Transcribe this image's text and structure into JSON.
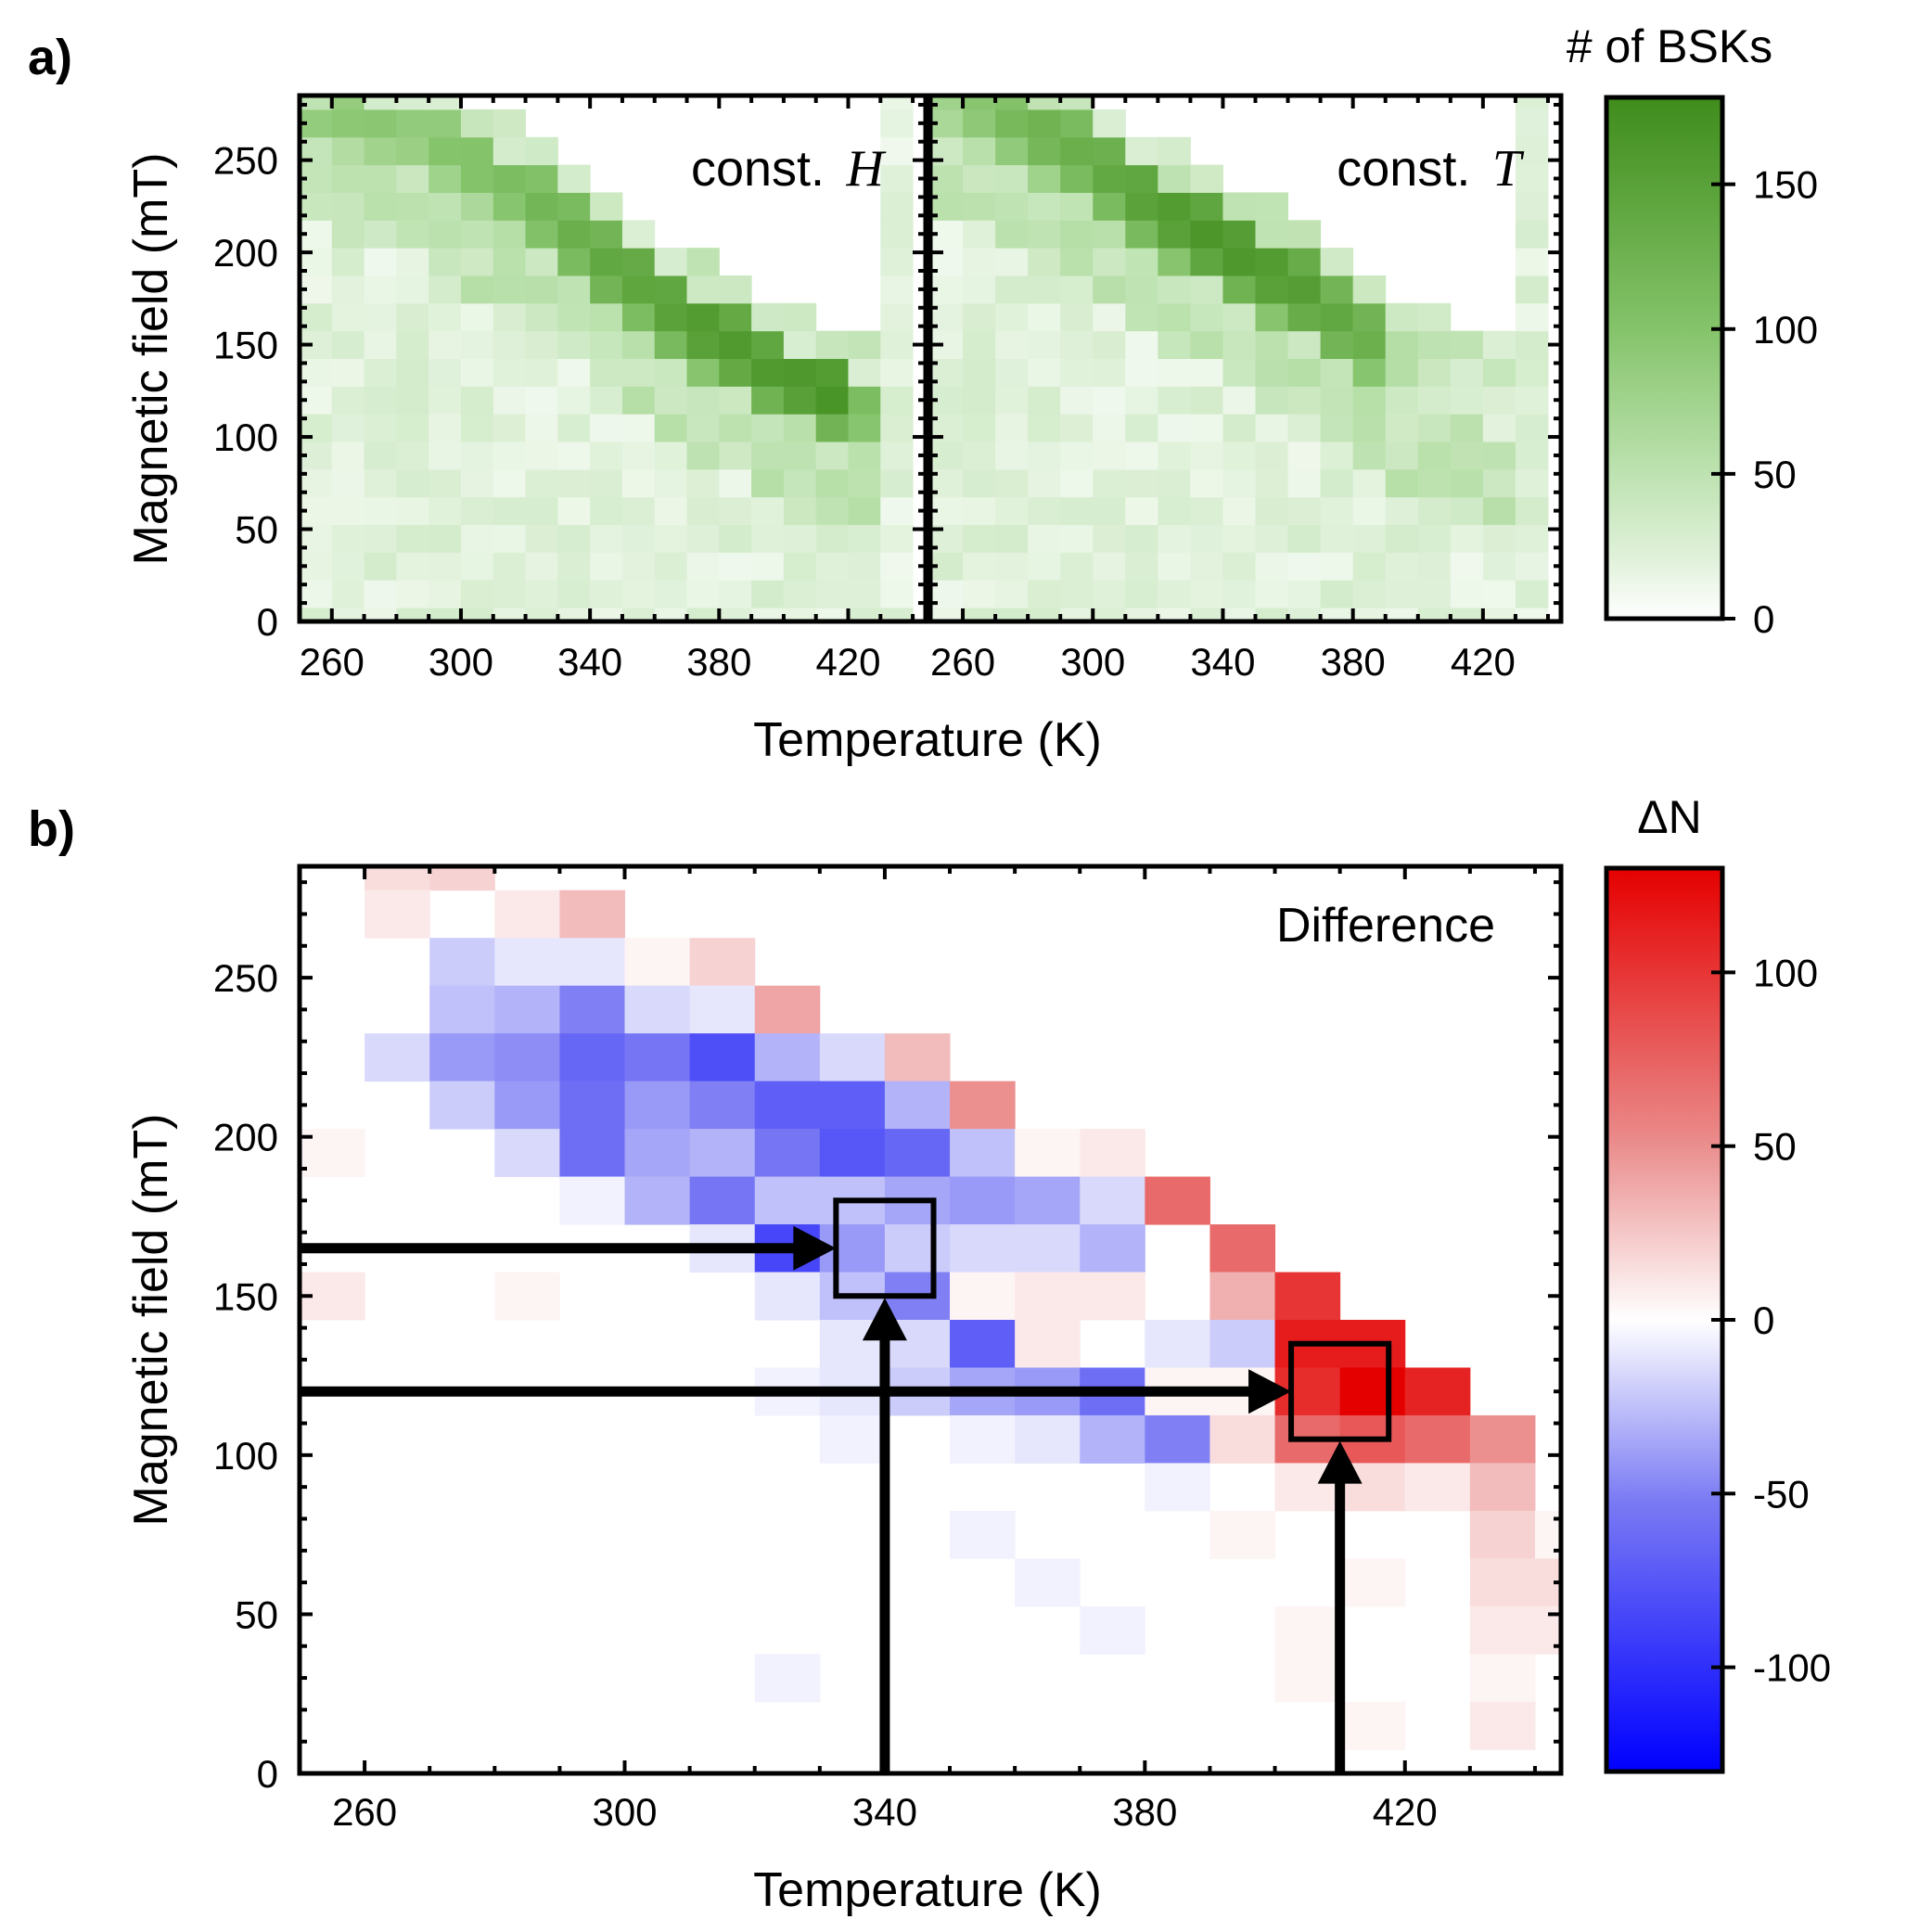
{
  "panel_labels": {
    "a": "a)",
    "b": "b)"
  },
  "panel_a": {
    "colorbar_title": "# of BSKs",
    "colorbar_ticks": [
      "0",
      "50",
      "100",
      "150"
    ],
    "colorbar_tick_values": [
      0,
      50,
      100,
      150
    ],
    "colorbar_range": [
      0,
      180
    ],
    "colorbar_colors": [
      "#ffffff",
      "#e4f3df",
      "#b9e0ab",
      "#86c46c",
      "#5ea53e",
      "#3f8c1c"
    ],
    "ylabel": "Magnetic field (mT)",
    "xlabel": "Temperature (K)",
    "yticks": [
      "0",
      "50",
      "100",
      "150",
      "200",
      "250"
    ],
    "left_xticks": [
      "260",
      "300",
      "340",
      "380",
      "420"
    ],
    "right_xticks": [
      "260",
      "300",
      "340",
      "380",
      "420"
    ]
  },
  "panel_b": {
    "colorbar_title": "ΔN",
    "colorbar_ticks": [
      "-100",
      "-50",
      "0",
      "50",
      "100"
    ],
    "colorbar_tick_values": [
      -100,
      -50,
      0,
      50,
      100
    ],
    "colorbar_range": [
      -130,
      130
    ],
    "colorbar_colors": [
      "#0000ff",
      "#7b7bf4",
      "#ffffff",
      "#ea8a8a",
      "#e50000"
    ],
    "ylabel": "Magnetic field (mT)",
    "xlabel": "Temperature (K)",
    "yticks": [
      "0",
      "50",
      "100",
      "150",
      "200",
      "250"
    ],
    "xticks": [
      "260",
      "300",
      "340",
      "380",
      "420"
    ],
    "annotation": "Difference"
  },
  "chart_data": [
    {
      "type": "heatmap",
      "title": "const. H",
      "title_text": "const.",
      "title_var": "H",
      "xlabel": "Temperature (K)",
      "ylabel": "Magnetic field (mT)",
      "xlim": [
        250,
        444
      ],
      "ylim": [
        0,
        285
      ],
      "color_range": [
        0,
        180
      ],
      "colorbar_label": "# of BSKs",
      "cell_size": {
        "T": 10,
        "H": 15
      },
      "bands": [
        {
          "t": 255,
          "hb": 270,
          "w": 10,
          "v": 90
        },
        {
          "t": 265,
          "hb": 265,
          "w": 20,
          "v": 95
        },
        {
          "t": 275,
          "hb": 260,
          "w": 20,
          "v": 95
        },
        {
          "t": 285,
          "hb": 255,
          "w": 20,
          "v": 90
        },
        {
          "t": 295,
          "hb": 245,
          "w": 25,
          "v": 100
        },
        {
          "t": 305,
          "hb": 235,
          "w": 25,
          "v": 105
        },
        {
          "t": 315,
          "hb": 225,
          "w": 25,
          "v": 110
        },
        {
          "t": 325,
          "hb": 210,
          "w": 30,
          "v": 120
        },
        {
          "t": 335,
          "hb": 195,
          "w": 30,
          "v": 130
        },
        {
          "t": 345,
          "hb": 180,
          "w": 30,
          "v": 140
        },
        {
          "t": 355,
          "hb": 170,
          "w": 30,
          "v": 145
        },
        {
          "t": 365,
          "hb": 155,
          "w": 30,
          "v": 150
        },
        {
          "t": 375,
          "hb": 145,
          "w": 30,
          "v": 160
        },
        {
          "t": 385,
          "hb": 135,
          "w": 30,
          "v": 160
        },
        {
          "t": 395,
          "hb": 125,
          "w": 25,
          "v": 160
        },
        {
          "t": 405,
          "hb": 118,
          "w": 25,
          "v": 165
        },
        {
          "t": 415,
          "hb": 112,
          "w": 25,
          "v": 170
        },
        {
          "t": 425,
          "hb": 105,
          "w": 25,
          "v": 110
        },
        {
          "t": 435,
          "hb": 0,
          "w": 0,
          "v": 0
        }
      ]
    },
    {
      "type": "heatmap",
      "title": "const. T",
      "title_text": "const.",
      "title_var": "T",
      "xlabel": "Temperature (K)",
      "ylabel": "Magnetic field (mT)",
      "xlim": [
        250,
        444
      ],
      "ylim": [
        0,
        285
      ],
      "color_range": [
        0,
        180
      ],
      "colorbar_label": "# of BSKs",
      "cell_size": {
        "T": 10,
        "H": 15
      },
      "bands": [
        {
          "t": 255,
          "hb": 275,
          "w": 10,
          "v": 80
        },
        {
          "t": 265,
          "hb": 270,
          "w": 20,
          "v": 100
        },
        {
          "t": 275,
          "hb": 260,
          "w": 25,
          "v": 115
        },
        {
          "t": 285,
          "hb": 250,
          "w": 30,
          "v": 125
        },
        {
          "t": 295,
          "hb": 240,
          "w": 30,
          "v": 130
        },
        {
          "t": 305,
          "hb": 228,
          "w": 30,
          "v": 140
        },
        {
          "t": 315,
          "hb": 215,
          "w": 30,
          "v": 150
        },
        {
          "t": 325,
          "hb": 205,
          "w": 30,
          "v": 160
        },
        {
          "t": 335,
          "hb": 195,
          "w": 30,
          "v": 165
        },
        {
          "t": 345,
          "hb": 185,
          "w": 30,
          "v": 165
        },
        {
          "t": 355,
          "hb": 175,
          "w": 30,
          "v": 160
        },
        {
          "t": 365,
          "hb": 165,
          "w": 30,
          "v": 155
        },
        {
          "t": 375,
          "hb": 150,
          "w": 30,
          "v": 140
        },
        {
          "t": 385,
          "hb": 140,
          "w": 30,
          "v": 130
        },
        {
          "t": 395,
          "hb": 130,
          "w": 25,
          "v": 60
        },
        {
          "t": 405,
          "hb": 125,
          "w": 20,
          "v": 40
        },
        {
          "t": 415,
          "hb": 118,
          "w": 20,
          "v": 30
        },
        {
          "t": 425,
          "hb": 110,
          "w": 20,
          "v": 25
        },
        {
          "t": 435,
          "hb": 0,
          "w": 0,
          "v": 0
        }
      ]
    },
    {
      "type": "heatmap",
      "title": "Difference",
      "xlabel": "Temperature (K)",
      "ylabel": "Magnetic field (mT)",
      "xlim": [
        250,
        444
      ],
      "ylim": [
        0,
        285
      ],
      "color_range": [
        -130,
        130
      ],
      "colorbar_label": "ΔN",
      "cell_size": {
        "T": 10,
        "H": 15
      },
      "cells": [
        [
          265,
          285,
          15
        ],
        [
          275,
          285,
          20
        ],
        [
          265,
          270,
          10
        ],
        [
          285,
          270,
          10
        ],
        [
          295,
          270,
          30
        ],
        [
          275,
          255,
          -20
        ],
        [
          285,
          255,
          -10
        ],
        [
          295,
          255,
          -10
        ],
        [
          305,
          255,
          5
        ],
        [
          315,
          255,
          20
        ],
        [
          275,
          240,
          -25
        ],
        [
          285,
          240,
          -30
        ],
        [
          295,
          240,
          -50
        ],
        [
          305,
          240,
          -15
        ],
        [
          315,
          240,
          -10
        ],
        [
          325,
          240,
          40
        ],
        [
          265,
          225,
          -15
        ],
        [
          275,
          225,
          -40
        ],
        [
          285,
          225,
          -45
        ],
        [
          295,
          225,
          -65
        ],
        [
          305,
          225,
          -55
        ],
        [
          315,
          225,
          -80
        ],
        [
          325,
          225,
          -30
        ],
        [
          335,
          225,
          -15
        ],
        [
          345,
          225,
          30
        ],
        [
          275,
          210,
          -20
        ],
        [
          285,
          210,
          -40
        ],
        [
          295,
          210,
          -60
        ],
        [
          305,
          210,
          -40
        ],
        [
          315,
          210,
          -50
        ],
        [
          325,
          210,
          -70
        ],
        [
          335,
          210,
          -70
        ],
        [
          345,
          210,
          -30
        ],
        [
          355,
          210,
          50
        ],
        [
          255,
          195,
          5
        ],
        [
          285,
          195,
          -15
        ],
        [
          295,
          195,
          -60
        ],
        [
          305,
          195,
          -35
        ],
        [
          315,
          195,
          -30
        ],
        [
          325,
          195,
          -55
        ],
        [
          335,
          195,
          -75
        ],
        [
          345,
          195,
          -65
        ],
        [
          355,
          195,
          -25
        ],
        [
          365,
          195,
          5
        ],
        [
          375,
          195,
          10
        ],
        [
          295,
          180,
          -5
        ],
        [
          305,
          180,
          -30
        ],
        [
          315,
          180,
          -55
        ],
        [
          325,
          180,
          -25
        ],
        [
          335,
          180,
          -25
        ],
        [
          345,
          180,
          -35
        ],
        [
          355,
          180,
          -40
        ],
        [
          365,
          180,
          -35
        ],
        [
          375,
          180,
          -15
        ],
        [
          385,
          180,
          70
        ],
        [
          315,
          165,
          -10
        ],
        [
          325,
          165,
          -85
        ],
        [
          335,
          165,
          -40
        ],
        [
          345,
          165,
          -20
        ],
        [
          355,
          165,
          -15
        ],
        [
          365,
          165,
          -15
        ],
        [
          375,
          165,
          -30
        ],
        [
          395,
          165,
          70
        ],
        [
          255,
          150,
          10
        ],
        [
          285,
          150,
          5
        ],
        [
          325,
          150,
          -10
        ],
        [
          335,
          150,
          -25
        ],
        [
          345,
          150,
          -50
        ],
        [
          355,
          150,
          5
        ],
        [
          365,
          150,
          10
        ],
        [
          375,
          150,
          10
        ],
        [
          395,
          150,
          35
        ],
        [
          405,
          150,
          100
        ],
        [
          335,
          135,
          -10
        ],
        [
          345,
          135,
          -15
        ],
        [
          355,
          135,
          -70
        ],
        [
          365,
          135,
          10
        ],
        [
          385,
          135,
          -10
        ],
        [
          395,
          135,
          -20
        ],
        [
          405,
          135,
          115
        ],
        [
          415,
          135,
          115
        ],
        [
          325,
          120,
          -5
        ],
        [
          335,
          120,
          -10
        ],
        [
          345,
          120,
          -20
        ],
        [
          355,
          120,
          -35
        ],
        [
          365,
          120,
          -40
        ],
        [
          375,
          120,
          -60
        ],
        [
          385,
          120,
          5
        ],
        [
          395,
          120,
          5
        ],
        [
          405,
          120,
          105
        ],
        [
          415,
          120,
          130
        ],
        [
          425,
          120,
          110
        ],
        [
          335,
          105,
          -5
        ],
        [
          355,
          105,
          -5
        ],
        [
          365,
          105,
          -10
        ],
        [
          375,
          105,
          -30
        ],
        [
          385,
          105,
          -50
        ],
        [
          395,
          105,
          15
        ],
        [
          405,
          105,
          70
        ],
        [
          415,
          105,
          80
        ],
        [
          425,
          105,
          70
        ],
        [
          435,
          105,
          50
        ],
        [
          385,
          90,
          -5
        ],
        [
          405,
          90,
          10
        ],
        [
          415,
          90,
          15
        ],
        [
          425,
          90,
          10
        ],
        [
          435,
          90,
          30
        ],
        [
          355,
          75,
          -5
        ],
        [
          395,
          75,
          5
        ],
        [
          435,
          75,
          20
        ],
        [
          445,
          75,
          5
        ],
        [
          365,
          60,
          -5
        ],
        [
          415,
          60,
          5
        ],
        [
          435,
          60,
          15
        ],
        [
          445,
          60,
          15
        ],
        [
          375,
          45,
          -5
        ],
        [
          405,
          45,
          5
        ],
        [
          435,
          45,
          10
        ],
        [
          445,
          45,
          10
        ],
        [
          325,
          30,
          -5
        ],
        [
          405,
          30,
          5
        ],
        [
          435,
          30,
          5
        ],
        [
          415,
          15,
          5
        ],
        [
          435,
          15,
          10
        ]
      ],
      "annotations": {
        "boxes": [
          {
            "T_min": 332.5,
            "T_max": 347.5,
            "H_min": 150,
            "H_max": 180
          },
          {
            "T_min": 402.5,
            "T_max": 417.5,
            "H_min": 105,
            "H_max": 135
          }
        ],
        "horizontal_arrows": [
          {
            "H": 165,
            "from_T": 250,
            "to_T": 332.5
          },
          {
            "H": 120,
            "from_T": 250,
            "to_T": 402.5
          }
        ],
        "vertical_arrows": [
          {
            "T": 340,
            "from_H": 0,
            "to_H": 150
          },
          {
            "T": 410,
            "from_H": 0,
            "to_H": 105
          }
        ]
      }
    }
  ]
}
